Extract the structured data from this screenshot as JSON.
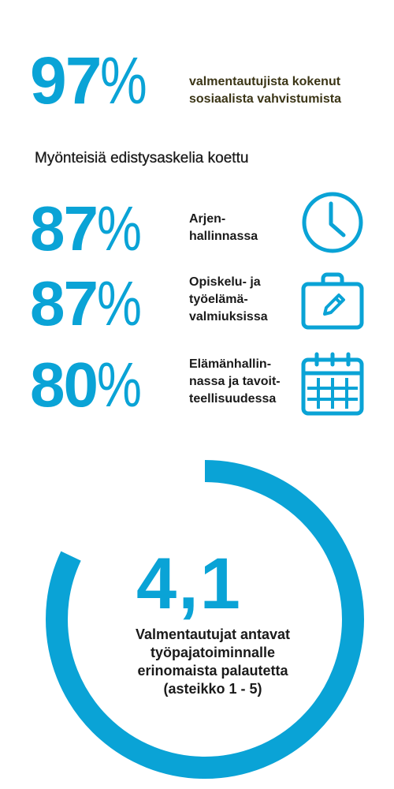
{
  "colors": {
    "accent": "#0aa3d6",
    "text": "#1a1a1a"
  },
  "highlight": {
    "value": "97",
    "unit": "%",
    "description_lines": [
      "valmentautujista kokenut",
      "sosiaalista vahvistumista"
    ]
  },
  "section_title": "Myönteisiä edistysaskelia koettu",
  "progress_items": [
    {
      "value": "87",
      "unit": "%",
      "label_lines": [
        "Arjen-",
        "hallinnassa"
      ],
      "icon": "clock-icon"
    },
    {
      "value": "87",
      "unit": "%",
      "label_lines": [
        "Opiskelu- ja",
        "työelämä-",
        "valmiuksissa"
      ],
      "icon": "briefcase-pencil-icon"
    },
    {
      "value": "80",
      "unit": "%",
      "label_lines": [
        "Elämänhallin-",
        "nassa ja tavoit-",
        "teellisuudessa"
      ],
      "icon": "calendar-icon"
    }
  ],
  "feedback": {
    "score": "4,1",
    "score_fraction_of_ring": 0.82,
    "text_lines": [
      "Valmentautujat antavat",
      "työpajatoiminnalle",
      "erinomaista palautetta",
      "(asteikko 1 - 5)"
    ]
  }
}
